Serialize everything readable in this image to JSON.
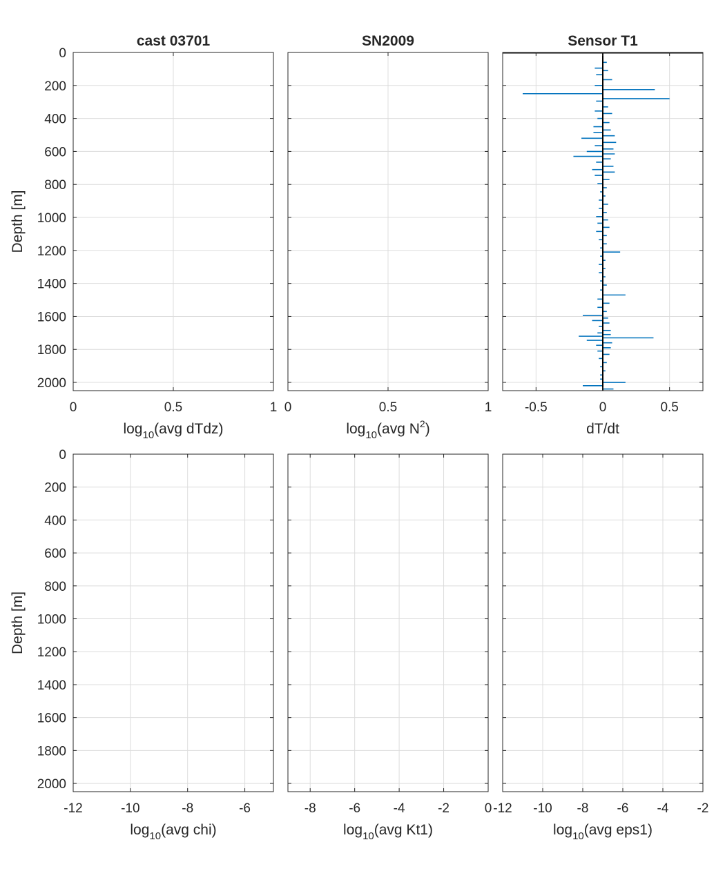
{
  "chart_data": [
    {
      "type": "line",
      "title": "cast 03701",
      "xlabel": {
        "pre": "log",
        "sub": "10",
        "post": "(avg dTdz)"
      },
      "ylabel": "Depth [m]",
      "xlim": [
        0,
        1
      ],
      "xticks": [
        0,
        0.5,
        1
      ],
      "xtick_labels": [
        "0",
        "0.5",
        "1"
      ],
      "ylim": [
        0,
        2050
      ],
      "yticks": [
        0,
        200,
        400,
        600,
        800,
        1000,
        1200,
        1400,
        1600,
        1800,
        2000
      ],
      "ytick_labels": [
        "0",
        "200",
        "400",
        "600",
        "800",
        "1000",
        "1200",
        "1400",
        "1600",
        "1800",
        "2000"
      ],
      "y_reversed": true,
      "grid": true,
      "series": []
    },
    {
      "type": "line",
      "title": "SN2009",
      "xlabel": {
        "pre": "log",
        "sub": "10",
        "post": "(avg N",
        "sup": "2",
        "post2": ")"
      },
      "ylabel": "",
      "xlim": [
        0,
        1
      ],
      "xticks": [
        0,
        0.5,
        1
      ],
      "xtick_labels": [
        "0",
        "0.5",
        "1"
      ],
      "ylim": [
        0,
        2050
      ],
      "yticks": [
        0,
        200,
        400,
        600,
        800,
        1000,
        1200,
        1400,
        1600,
        1800,
        2000
      ],
      "ytick_labels": [],
      "y_reversed": true,
      "grid": true,
      "series": []
    },
    {
      "type": "line",
      "title": "Sensor T1",
      "xlabel": {
        "pre": "dT/dt"
      },
      "ylabel": "",
      "xlim": [
        -0.75,
        0.75
      ],
      "xticks": [
        -0.5,
        0,
        0.5
      ],
      "xtick_labels": [
        "-0.5",
        "0",
        "0.5"
      ],
      "ylim": [
        0,
        2050
      ],
      "yticks": [
        0,
        200,
        400,
        600,
        800,
        1000,
        1200,
        1400,
        1600,
        1800,
        2000
      ],
      "ytick_labels": [],
      "y_reversed": true,
      "grid": true,
      "series_color": "#0072bd",
      "overlay_color": "#000000",
      "series": [
        {
          "x": [
            0.03,
            -0.06,
            0.04,
            -0.05,
            0.07,
            -0.06,
            0.39,
            -0.6,
            0.5,
            -0.05,
            0.04,
            -0.06,
            0.07,
            -0.04,
            0.05,
            -0.07,
            0.06,
            -0.07,
            0.09,
            -0.16,
            0.1,
            -0.06,
            0.08,
            -0.12,
            0.09,
            -0.22,
            0.06,
            -0.05,
            0.08,
            -0.08,
            0.09,
            -0.06,
            0.05,
            -0.04,
            0.03,
            -0.02,
            0.02,
            -0.03,
            0.04,
            -0.03,
            0.03,
            -0.05,
            0.04,
            -0.04,
            0.05,
            -0.05,
            0.03,
            -0.03,
            0.03,
            -0.02,
            0.13,
            -0.02,
            0.02,
            -0.03,
            0.02,
            -0.03,
            0.02,
            -0.02,
            0.03,
            -0.02,
            0.17,
            -0.04,
            0.05,
            -0.04,
            0.03,
            -0.15,
            0.04,
            -0.08,
            0.05,
            -0.03,
            0.06,
            -0.04,
            0.06,
            -0.18,
            0.38,
            -0.12,
            0.07,
            -0.05,
            0.06,
            -0.04,
            0.05,
            -0.03,
            0.03,
            -0.02,
            0.02,
            -0.02,
            -0.02,
            0.17,
            -0.15,
            0.08
          ],
          "y": [
            60,
            95,
            110,
            135,
            165,
            200,
            225,
            250,
            280,
            295,
            330,
            355,
            370,
            400,
            425,
            450,
            470,
            485,
            505,
            520,
            545,
            565,
            585,
            600,
            615,
            630,
            645,
            665,
            690,
            710,
            725,
            745,
            770,
            795,
            820,
            845,
            870,
            895,
            920,
            945,
            970,
            995,
            1015,
            1035,
            1060,
            1085,
            1110,
            1135,
            1160,
            1185,
            1210,
            1235,
            1260,
            1285,
            1310,
            1335,
            1360,
            1385,
            1410,
            1440,
            1470,
            1495,
            1520,
            1545,
            1570,
            1595,
            1610,
            1625,
            1640,
            1660,
            1685,
            1700,
            1710,
            1720,
            1730,
            1745,
            1760,
            1775,
            1790,
            1810,
            1830,
            1855,
            1880,
            1905,
            1930,
            1955,
            1980,
            2000,
            2020,
            2040
          ]
        }
      ]
    },
    {
      "type": "line",
      "title": "",
      "xlabel": {
        "pre": "log",
        "sub": "10",
        "post": "(avg chi)"
      },
      "ylabel": "Depth [m]",
      "xlim": [
        -12,
        -5
      ],
      "xticks": [
        -12,
        -10,
        -8,
        -6
      ],
      "xtick_labels": [
        "-12",
        "-10",
        "-8",
        "-6"
      ],
      "ylim": [
        0,
        2050
      ],
      "yticks": [
        0,
        200,
        400,
        600,
        800,
        1000,
        1200,
        1400,
        1600,
        1800,
        2000
      ],
      "ytick_labels": [
        "0",
        "200",
        "400",
        "600",
        "800",
        "1000",
        "1200",
        "1400",
        "1600",
        "1800",
        "2000"
      ],
      "y_reversed": true,
      "grid": true,
      "series": []
    },
    {
      "type": "line",
      "title": "",
      "xlabel": {
        "pre": "log",
        "sub": "10",
        "post": "(avg Kt1)"
      },
      "ylabel": "",
      "xlim": [
        -9,
        0
      ],
      "xticks": [
        -8,
        -6,
        -4,
        -2,
        0
      ],
      "xtick_labels": [
        "-8",
        "-6",
        "-4",
        "-2",
        "0"
      ],
      "ylim": [
        0,
        2050
      ],
      "yticks": [
        0,
        200,
        400,
        600,
        800,
        1000,
        1200,
        1400,
        1600,
        1800,
        2000
      ],
      "ytick_labels": [],
      "y_reversed": true,
      "grid": true,
      "series": []
    },
    {
      "type": "line",
      "title": "",
      "xlabel": {
        "pre": "log",
        "sub": "10",
        "post": "(avg eps1)"
      },
      "ylabel": "",
      "xlim": [
        -12,
        -2
      ],
      "xticks": [
        -12,
        -10,
        -8,
        -6,
        -4,
        -2
      ],
      "xtick_labels": [
        "-12",
        "-10",
        "-8",
        "-6",
        "-4",
        "-2"
      ],
      "ylim": [
        0,
        2050
      ],
      "yticks": [
        0,
        200,
        400,
        600,
        800,
        1000,
        1200,
        1400,
        1600,
        1800,
        2000
      ],
      "ytick_labels": [],
      "y_reversed": true,
      "grid": true,
      "series": []
    }
  ]
}
